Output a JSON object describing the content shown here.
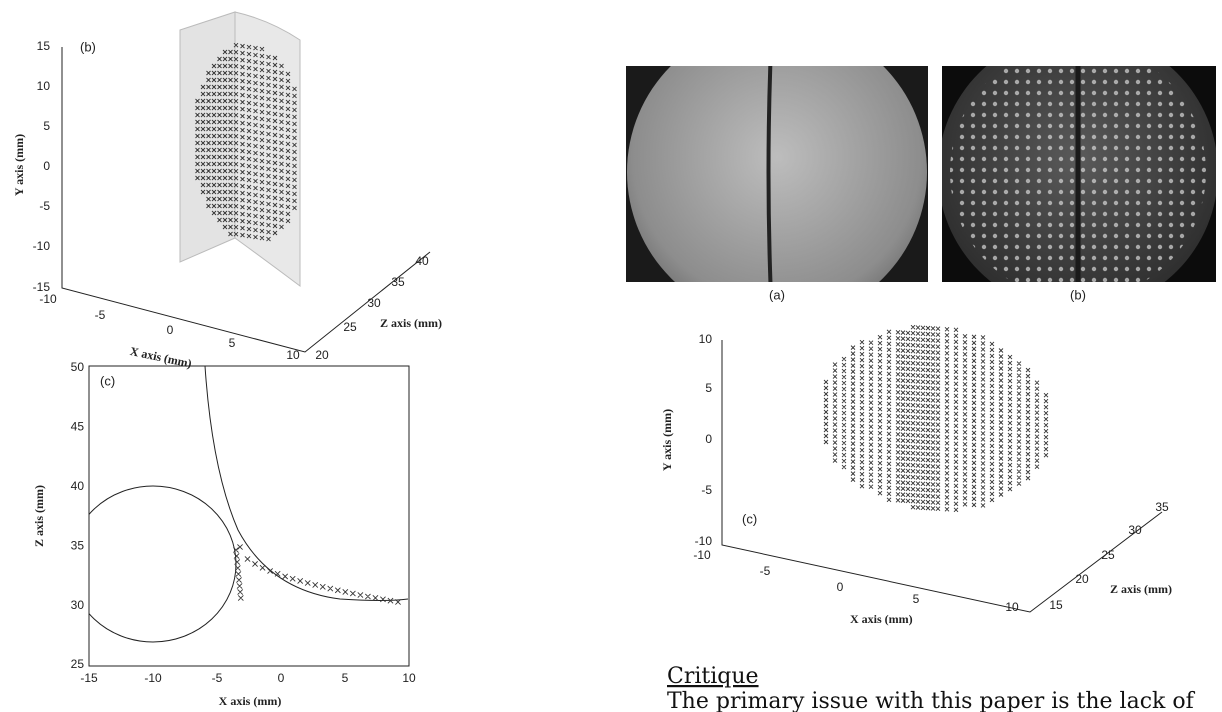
{
  "figure_left": {
    "panel_b": {
      "label": "(b)",
      "y_axis_label": "Y axis (mm)",
      "x_axis_label": "X axis (mm)",
      "z_axis_label": "Z axis (mm)",
      "y_ticks": [
        "15",
        "10",
        "5",
        "0",
        "-5",
        "-10",
        "-15"
      ],
      "x_ticks": [
        "-10",
        "-5",
        "0",
        "5",
        "10"
      ],
      "z_ticks": [
        "20",
        "25",
        "30",
        "35",
        "40"
      ]
    },
    "panel_c": {
      "label": "(c)",
      "y_axis_label": "Z axis (mm)",
      "x_axis_label": "X axis (mm)",
      "y_ticks": [
        "50",
        "45",
        "40",
        "35",
        "30",
        "25"
      ],
      "x_ticks": [
        "-15",
        "-10",
        "-5",
        "0",
        "5",
        "10"
      ]
    }
  },
  "figure_right": {
    "photo_a_label": "(a)",
    "photo_b_label": "(b)",
    "panel_c": {
      "label": "(c)",
      "y_axis_label": "Y axis (mm)",
      "x_axis_label": "X axis (mm)",
      "z_axis_label": "Z axis (mm)",
      "y_ticks": [
        "10",
        "5",
        "0",
        "-5",
        "-10"
      ],
      "x_ticks": [
        "-10",
        "-5",
        "0",
        "5",
        "10"
      ],
      "z_ticks": [
        "15",
        "20",
        "25",
        "30",
        "35"
      ]
    }
  },
  "critique": {
    "heading": "Critique",
    "text": "The primary issue with this paper is the lack of"
  }
}
